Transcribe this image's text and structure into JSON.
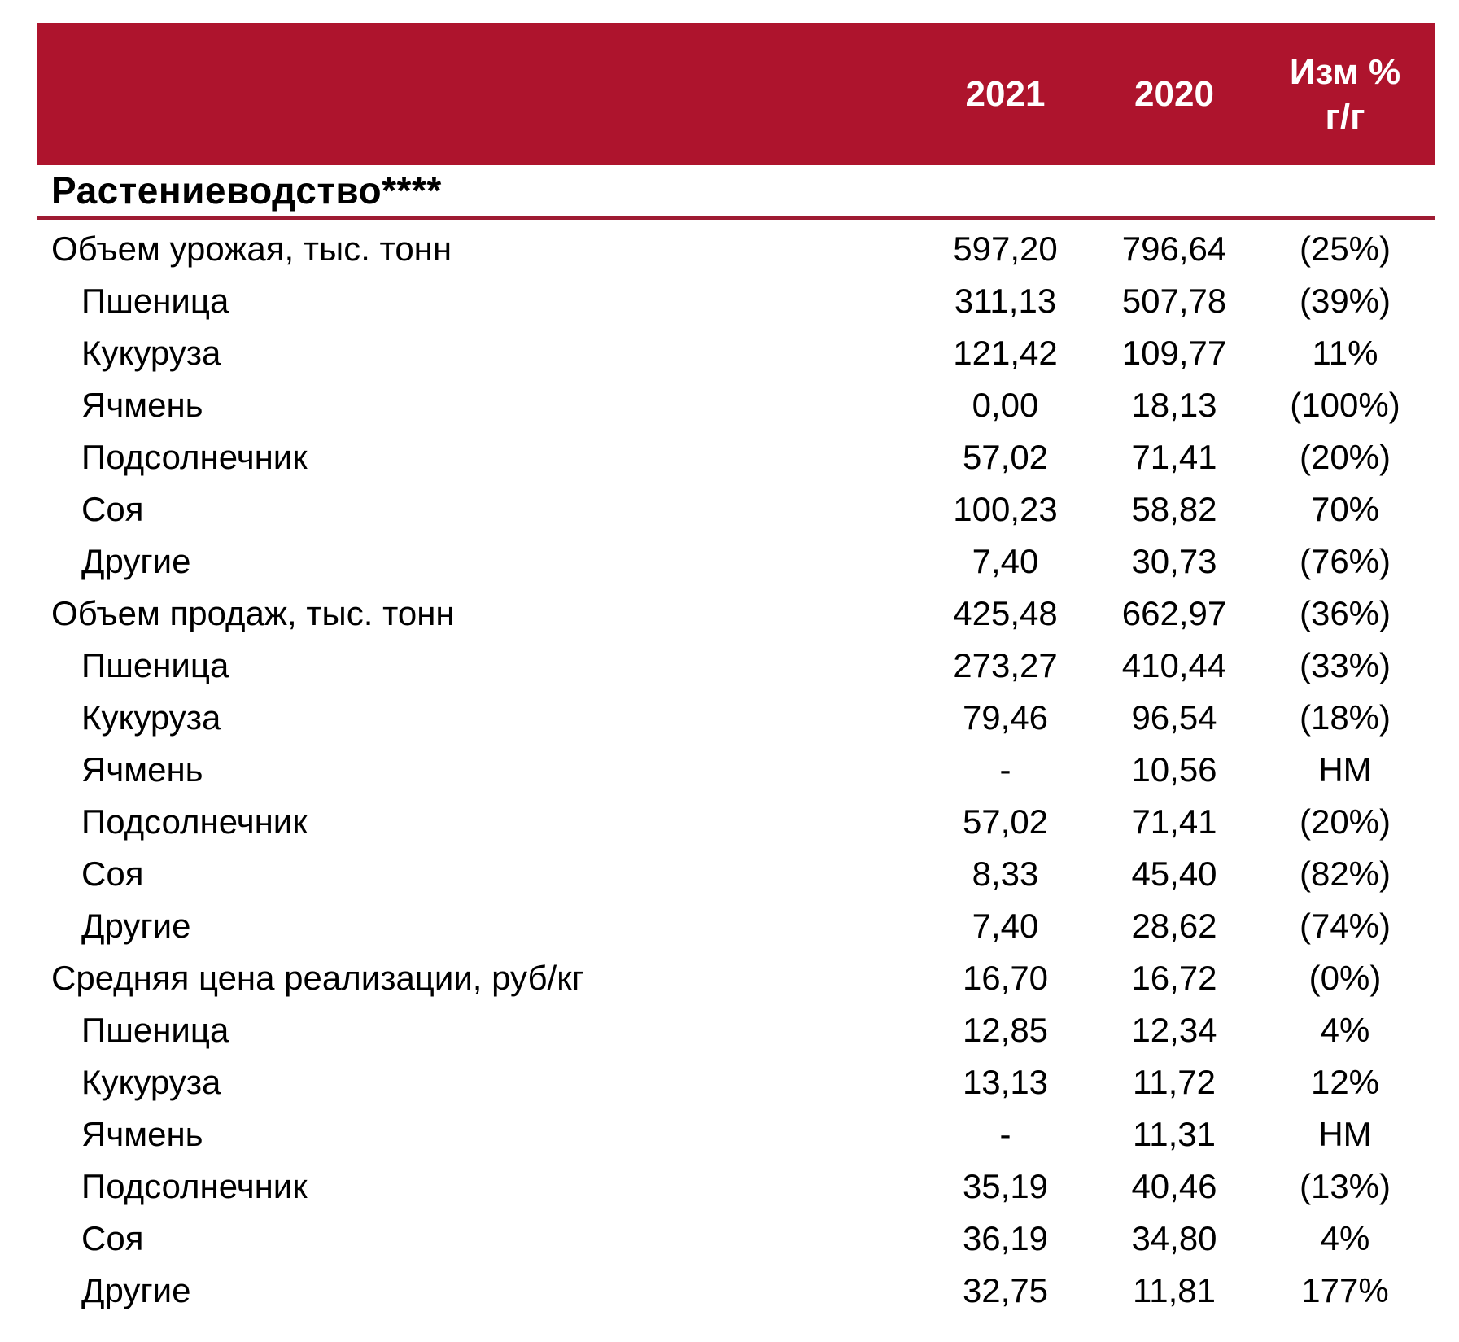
{
  "table": {
    "colors": {
      "header_bg": "#AE142D",
      "header_text": "#FFFFFF",
      "rule": "#9E1B32",
      "text": "#000000",
      "background": "#FFFFFF"
    },
    "header": {
      "col_2021": "2021",
      "col_2020": "2020",
      "change_line1": "Изм %",
      "change_line2": "г/г"
    },
    "section_title": "Растениеводство****",
    "rows": [
      {
        "label": "Объем урожая, тыс. тонн",
        "indent": false,
        "v2021": "597,20",
        "v2020": "796,64",
        "change": "(25%)"
      },
      {
        "label": "Пшеница",
        "indent": true,
        "v2021": "311,13",
        "v2020": "507,78",
        "change": "(39%)"
      },
      {
        "label": "Кукуруза",
        "indent": true,
        "v2021": "121,42",
        "v2020": "109,77",
        "change": "11%"
      },
      {
        "label": "Ячмень",
        "indent": true,
        "v2021": "0,00",
        "v2020": "18,13",
        "change": "(100%)"
      },
      {
        "label": "Подсолнечник",
        "indent": true,
        "v2021": "57,02",
        "v2020": "71,41",
        "change": "(20%)"
      },
      {
        "label": "Соя",
        "indent": true,
        "v2021": "100,23",
        "v2020": "58,82",
        "change": "70%"
      },
      {
        "label": "Другие",
        "indent": true,
        "v2021": "7,40",
        "v2020": "30,73",
        "change": "(76%)"
      },
      {
        "label": "Объем продаж, тыс. тонн",
        "indent": false,
        "v2021": "425,48",
        "v2020": "662,97",
        "change": "(36%)"
      },
      {
        "label": "Пшеница",
        "indent": true,
        "v2021": "273,27",
        "v2020": "410,44",
        "change": "(33%)"
      },
      {
        "label": "Кукуруза",
        "indent": true,
        "v2021": "79,46",
        "v2020": "96,54",
        "change": "(18%)"
      },
      {
        "label": "Ячмень",
        "indent": true,
        "v2021": "-",
        "v2020": "10,56",
        "change": "НМ"
      },
      {
        "label": "Подсолнечник",
        "indent": true,
        "v2021": "57,02",
        "v2020": "71,41",
        "change": "(20%)"
      },
      {
        "label": "Соя",
        "indent": true,
        "v2021": "8,33",
        "v2020": "45,40",
        "change": "(82%)"
      },
      {
        "label": "Другие",
        "indent": true,
        "v2021": "7,40",
        "v2020": "28,62",
        "change": "(74%)"
      },
      {
        "label": "Средняя цена реализации, руб/кг",
        "indent": false,
        "v2021": "16,70",
        "v2020": "16,72",
        "change": "(0%)"
      },
      {
        "label": "Пшеница",
        "indent": true,
        "v2021": "12,85",
        "v2020": "12,34",
        "change": "4%"
      },
      {
        "label": "Кукуруза",
        "indent": true,
        "v2021": "13,13",
        "v2020": "11,72",
        "change": "12%"
      },
      {
        "label": "Ячмень",
        "indent": true,
        "v2021": "-",
        "v2020": "11,31",
        "change": "НМ"
      },
      {
        "label": "Подсолнечник",
        "indent": true,
        "v2021": "35,19",
        "v2020": "40,46",
        "change": "(13%)"
      },
      {
        "label": "Соя",
        "indent": true,
        "v2021": "36,19",
        "v2020": "34,80",
        "change": "4%"
      },
      {
        "label": "Другие",
        "indent": true,
        "v2021": "32,75",
        "v2020": "11,81",
        "change": "177%"
      }
    ]
  }
}
